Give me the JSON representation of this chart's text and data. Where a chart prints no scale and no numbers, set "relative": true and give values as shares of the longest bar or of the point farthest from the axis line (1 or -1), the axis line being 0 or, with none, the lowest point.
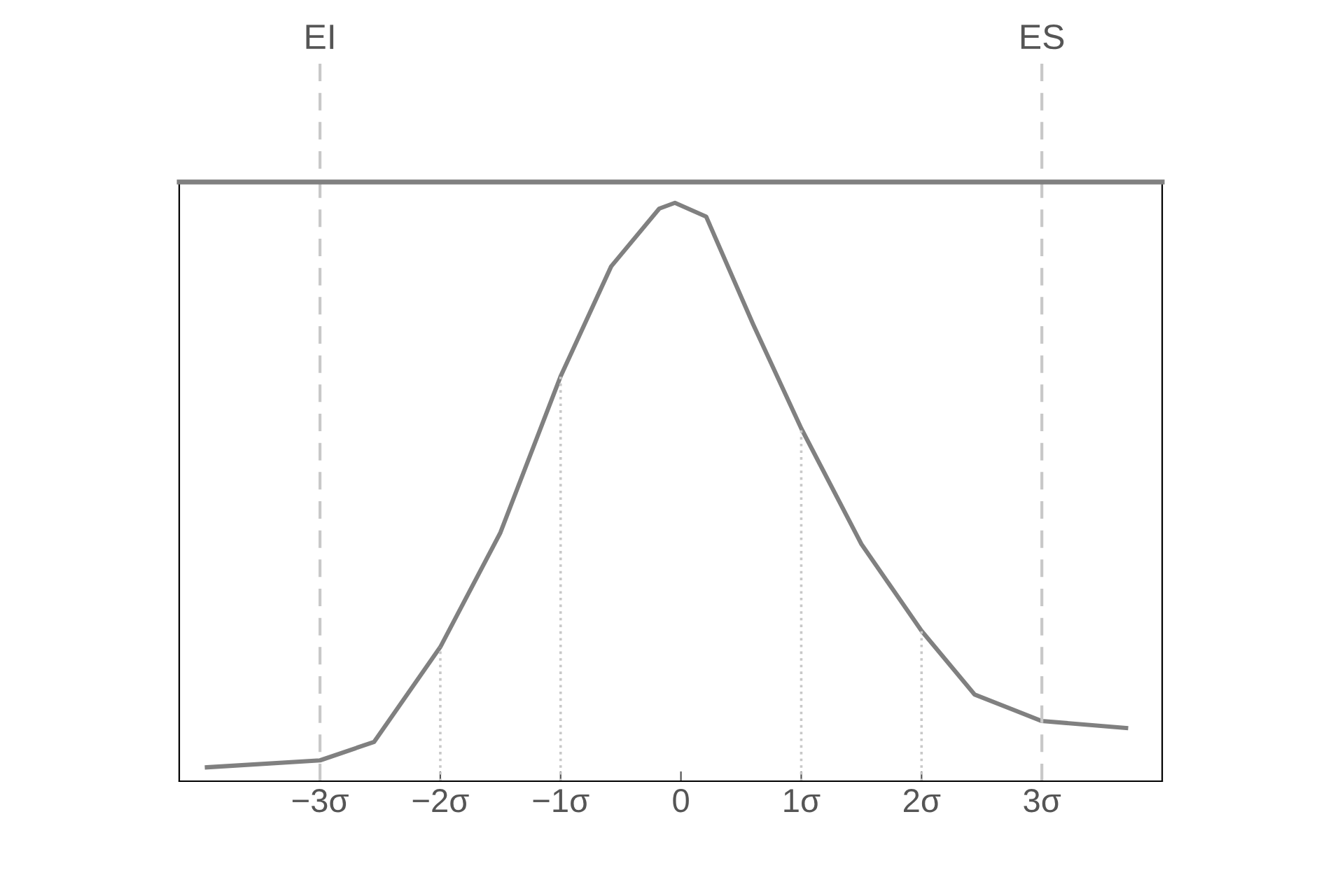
{
  "chart_data": {
    "type": "line",
    "relative": true,
    "x": [
      -3.94,
      -3,
      -2.55,
      -2,
      -1.5,
      -1,
      -0.58,
      -0.18,
      -0.05,
      0.21,
      0.6,
      1,
      1.5,
      2,
      2.44,
      3,
      3.7
    ],
    "series": [
      {
        "color": "#808080",
        "values": [
          0.024,
          0.036,
          0.068,
          0.232,
          0.43,
          0.7,
          0.89,
          0.99,
          1.0,
          0.976,
          0.79,
          0.61,
          0.41,
          0.26,
          0.15,
          0.104,
          0.092
        ]
      }
    ],
    "xlim": [
      -4.17,
      4.0
    ],
    "xticks": [
      {
        "value": -3,
        "label": "−3σ"
      },
      {
        "value": -2,
        "label": "−2σ"
      },
      {
        "value": -1,
        "label": "−1σ"
      },
      0,
      {
        "value": 1,
        "label": "1σ"
      },
      {
        "value": 2,
        "label": "2σ"
      },
      {
        "value": 3,
        "label": "3σ"
      }
    ],
    "tick_labels": "x",
    "grid": false,
    "legend": false,
    "marker": "none",
    "line_style": "solid",
    "ref_lines": [
      {
        "axis": "x",
        "value": -3,
        "label": "EI",
        "color": "#c8c8c8",
        "line_style": "dashed"
      },
      {
        "axis": "x",
        "value": 3,
        "label": "ES",
        "color": "#c8c8c8",
        "line_style": "dashed"
      },
      {
        "axis": "x",
        "value": -2,
        "label": null,
        "color": "#c8c8c8",
        "line_style": "dotted"
      },
      {
        "axis": "x",
        "value": -1,
        "label": null,
        "color": "#c8c8c8",
        "line_style": "dotted"
      },
      {
        "axis": "x",
        "value": 1,
        "label": null,
        "color": "#c8c8c8",
        "line_style": "dotted"
      },
      {
        "axis": "x",
        "value": 2,
        "label": null,
        "color": "#c8c8c8",
        "line_style": "dotted"
      }
    ]
  }
}
